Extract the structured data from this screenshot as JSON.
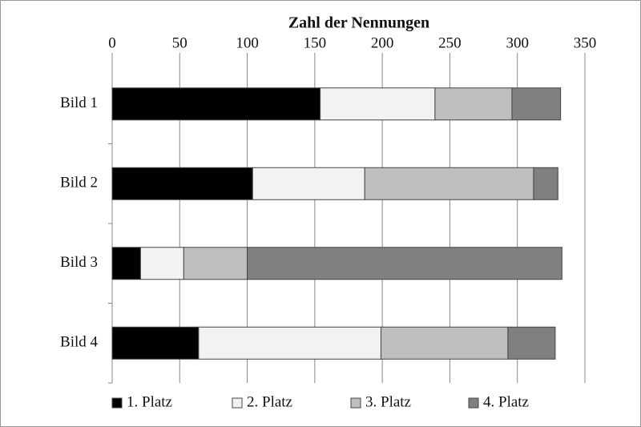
{
  "chart_data": {
    "type": "stacked-bar-horizontal",
    "title": "Zahl der Nennungen",
    "categories": [
      "Bild 1",
      "Bild 2",
      "Bild 3",
      "Bild 4"
    ],
    "series": [
      {
        "name": "1. Platz",
        "color": "#000000",
        "values": [
          154,
          104,
          21,
          64
        ]
      },
      {
        "name": "2. Platz",
        "color": "#f2f2f2",
        "values": [
          85,
          83,
          32,
          135
        ]
      },
      {
        "name": "3. Platz",
        "color": "#bfbfbf",
        "values": [
          57,
          125,
          47,
          94
        ]
      },
      {
        "name": "4. Platz",
        "color": "#808080",
        "values": [
          36,
          18,
          233,
          35
        ]
      }
    ],
    "xlim": [
      0,
      350
    ],
    "xticks": [
      0,
      50,
      100,
      150,
      200,
      250,
      300,
      350
    ],
    "grid": true,
    "legend": "bottom"
  }
}
